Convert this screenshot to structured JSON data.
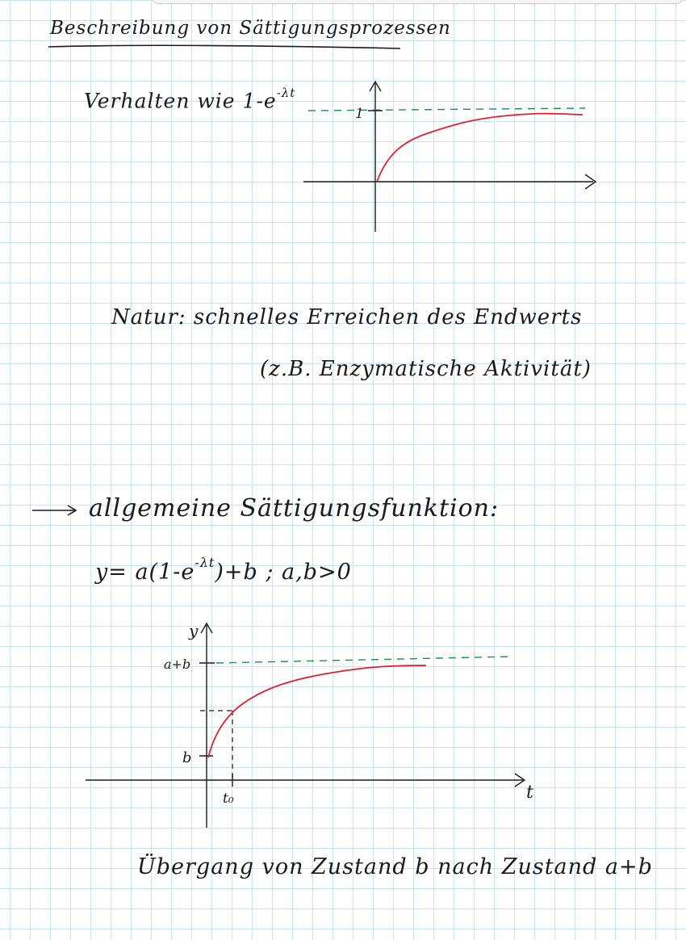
{
  "title": "Beschreibung von Sättigungsprozessen",
  "behaviour": {
    "prefix": "Verhalten wie 1-e",
    "exponent": "-λt"
  },
  "graph1": {
    "y_tick_label": "1"
  },
  "nature": {
    "line1": "Natur: schnelles Erreichen des Endwerts",
    "line2": "(z.B. Enzymatische Aktivität)"
  },
  "general": {
    "heading": "allgemeine Sättigungsfunktion:"
  },
  "formula": {
    "prefix": "y= a(1-e",
    "exponent": "-λt",
    "suffix": ")+b ; a,b>0"
  },
  "graph2": {
    "y_axis_label": "y",
    "x_axis_label": "t",
    "upper_label": "a+b",
    "lower_label": "b",
    "t0_label": "t₀"
  },
  "transition": "Übergang von Zustand b nach Zustand a+b",
  "colors": {
    "curve": "#e0202e",
    "asymptote": "#1f8a52",
    "ink": "#1a1a1a"
  }
}
